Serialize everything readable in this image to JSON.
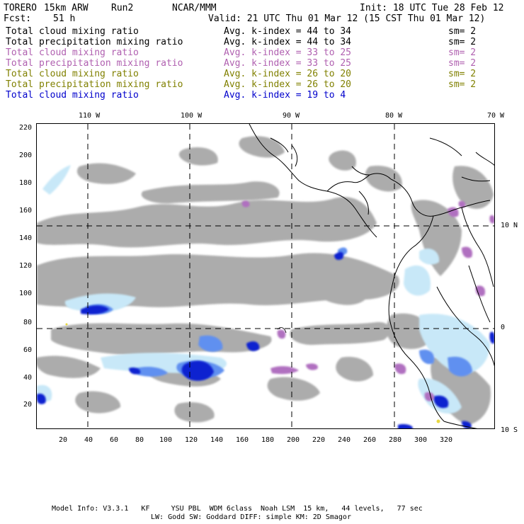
{
  "header": {
    "model": "TORERO",
    "resolution": "15km ARW",
    "run": "Run2",
    "org": "NCAR/MMM",
    "init": "Init: 18 UTC Tue 28 Feb 12",
    "fcst_label": "Fcst:",
    "fcst_value": "51 h",
    "valid": "Valid: 21 UTC Thu 01 Mar 12 (15 CST Thu 01 Mar 12)"
  },
  "legend": [
    {
      "field": "Total cloud mixing ratio",
      "idx": "Avg. k-index = 44 to 34",
      "sm": "sm= 2",
      "color": "#000000"
    },
    {
      "field": "Total precipitation mixing ratio",
      "idx": "Avg. k-index = 44 to 34",
      "sm": "sm= 2",
      "color": "#000000"
    },
    {
      "field": "Total cloud mixing ratio",
      "idx": "Avg. k-index = 33 to 25",
      "sm": "sm= 2",
      "color": "#b060b0"
    },
    {
      "field": "Total precipitation mixing ratio",
      "idx": "Avg. k-index = 33 to 25",
      "sm": "sm= 2",
      "color": "#b060b0"
    },
    {
      "field": "Total cloud mixing ratio",
      "idx": "Avg. k-index = 26 to 20",
      "sm": "sm= 2",
      "color": "#808000"
    },
    {
      "field": "Total precipitation mixing ratio",
      "idx": "Avg. k-index = 26 to 20",
      "sm": "sm= 2",
      "color": "#808000"
    },
    {
      "field": "Total cloud mixing ratio",
      "idx": "Avg. k-index = 19 to 4",
      "sm": "",
      "color": "#0000cc"
    }
  ],
  "map": {
    "top_lon_labels": [
      "110 W",
      "100 W",
      "90 W",
      "80 W",
      "70 W"
    ],
    "right_lat_labels": [
      "10 N",
      "0",
      "10 S"
    ],
    "left_ticks": [
      "220",
      "200",
      "180",
      "160",
      "140",
      "120",
      "100",
      "80",
      "60",
      "40",
      "20"
    ],
    "bottom_ticks": [
      "20",
      "40",
      "60",
      "80",
      "100",
      "120",
      "140",
      "160",
      "180",
      "200",
      "220",
      "240",
      "260",
      "280",
      "300",
      "320"
    ],
    "colors": {
      "cloud_gray": "#a8a8a8",
      "light_blue": "#c8e8f8",
      "mid_blue": "#6090f0",
      "dark_blue": "#1020d0",
      "purple": "#b070c0",
      "yellow": "#e8d840"
    }
  },
  "footer": {
    "line1": "Model Info: V3.3.1   KF     YSU PBL  WDM 6class  Noah LSM  15 km,   44 levels,   77 sec",
    "line2": "LW: Godd SW: Goddard DIFF: simple KM: 2D Smagor"
  }
}
